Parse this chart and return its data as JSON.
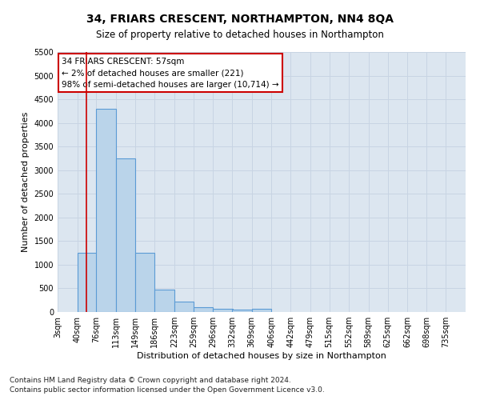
{
  "title": "34, FRIARS CRESCENT, NORTHAMPTON, NN4 8QA",
  "subtitle": "Size of property relative to detached houses in Northampton",
  "xlabel": "Distribution of detached houses by size in Northampton",
  "ylabel": "Number of detached properties",
  "footnote1": "Contains HM Land Registry data © Crown copyright and database right 2024.",
  "footnote2": "Contains public sector information licensed under the Open Government Licence v3.0.",
  "annotation_line1": "34 FRIARS CRESCENT: 57sqm",
  "annotation_line2": "← 2% of detached houses are smaller (221)",
  "annotation_line3": "98% of semi-detached houses are larger (10,714) →",
  "bar_edges": [
    3,
    40,
    76,
    113,
    149,
    186,
    223,
    259,
    296,
    332,
    369,
    406,
    442,
    479,
    515,
    552,
    589,
    625,
    662,
    698,
    735
  ],
  "bar_heights": [
    0,
    1250,
    4300,
    3250,
    1250,
    480,
    225,
    100,
    70,
    50,
    70,
    0,
    0,
    0,
    0,
    0,
    0,
    0,
    0,
    0,
    0
  ],
  "bar_color": "#bad4ea",
  "bar_edge_color": "#5b9bd5",
  "red_line_x": 57,
  "red_line_color": "#cc0000",
  "annotation_box_color": "#cc0000",
  "annotation_box_fill": "#ffffff",
  "ylim": [
    0,
    5500
  ],
  "yticks": [
    0,
    500,
    1000,
    1500,
    2000,
    2500,
    3000,
    3500,
    4000,
    4500,
    5000,
    5500
  ],
  "grid_color": "#c8d4e3",
  "background_color": "#dce6f0",
  "title_fontsize": 10,
  "subtitle_fontsize": 8.5,
  "axis_label_fontsize": 8,
  "tick_fontsize": 7,
  "annotation_fontsize": 7.5,
  "footnote_fontsize": 6.5
}
